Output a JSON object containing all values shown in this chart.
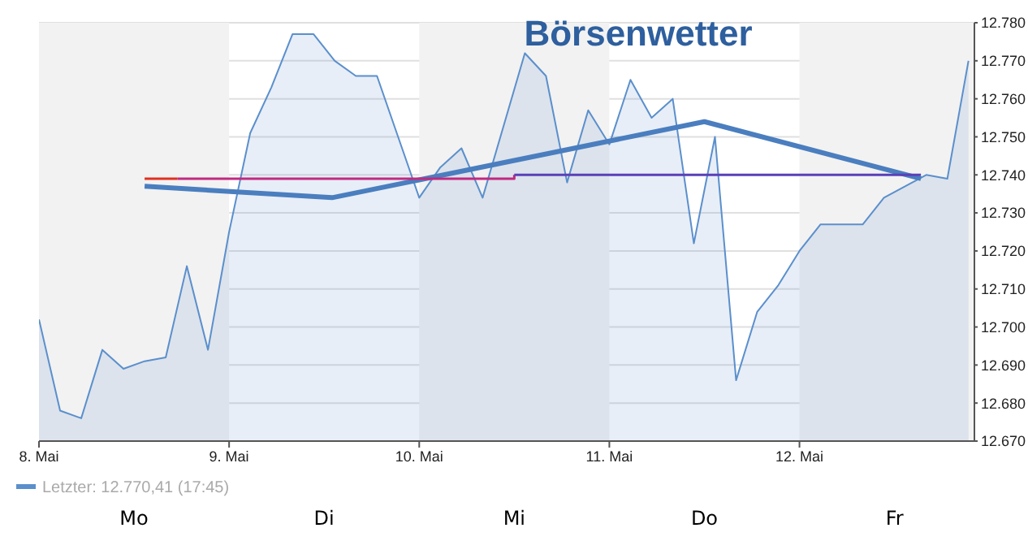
{
  "chart_data": {
    "type": "area",
    "title": "Börsenwetter",
    "annotations": [
      "Mo",
      "Di",
      "Mi",
      "Do",
      "Fr"
    ],
    "xlim": [
      "--05-08T00:00",
      "--05-12T22:05"
    ],
    "xticks": [
      {
        "value": "--05-08T00:00",
        "label": "8. Mai"
      },
      {
        "value": "--05-09T00:00",
        "label": "9. Mai"
      },
      {
        "value": "--05-10T00:00",
        "label": "10. Mai"
      },
      {
        "value": "--05-11T00:00",
        "label": "11. Mai"
      },
      {
        "value": "--05-12T00:00",
        "label": "12. Mai"
      }
    ],
    "ylim": [
      12670,
      12780
    ],
    "yticks": [
      {
        "value": 12670,
        "label": "12.670"
      },
      {
        "value": 12680,
        "label": "12.680"
      },
      {
        "value": 12690,
        "label": "12.690"
      },
      {
        "value": 12700,
        "label": "12.700"
      },
      {
        "value": 12710,
        "label": "12.710"
      },
      {
        "value": 12720,
        "label": "12.720"
      },
      {
        "value": 12730,
        "label": "12.730"
      },
      {
        "value": 12740,
        "label": "12.740"
      },
      {
        "value": 12750,
        "label": "12.750"
      },
      {
        "value": 12760,
        "label": "12.760"
      },
      {
        "value": 12770,
        "label": "12.770"
      },
      {
        "value": 12780,
        "label": "12.780"
      }
    ],
    "grid": "y",
    "legend": "bottom left",
    "bands": [
      {
        "axis": "x",
        "from": "--05-08T00:00",
        "to": "--05-09T00:00",
        "color": "#f2f2f2"
      },
      {
        "axis": "x",
        "from": "--05-10T00:00",
        "to": "--05-11T00:00",
        "color": "#f2f2f2"
      },
      {
        "axis": "x",
        "from": "--05-12T00:00",
        "to": "--05-12T22:05",
        "color": "#f2f2f2"
      }
    ],
    "series": [
      {
        "name": "Letzter: 12.770,41 (17:45)",
        "color": "#5b8fcc",
        "x": [
          "--05-08T00:00",
          "--05-08T02:40",
          "--05-08T05:20",
          "--05-08T08:00",
          "--05-08T10:40",
          "--05-08T13:20",
          "--05-08T16:00",
          "--05-08T18:40",
          "--05-08T21:20",
          "--05-09T00:00",
          "--05-09T02:40",
          "--05-09T05:20",
          "--05-09T08:00",
          "--05-09T10:40",
          "--05-09T13:20",
          "--05-09T16:00",
          "--05-09T18:40",
          "--05-09T21:20",
          "--05-10T00:00",
          "--05-10T02:40",
          "--05-10T05:20",
          "--05-10T08:00",
          "--05-10T10:40",
          "--05-10T13:20",
          "--05-10T16:00",
          "--05-10T18:40",
          "--05-10T21:20",
          "--05-11T00:00",
          "--05-11T02:40",
          "--05-11T05:20",
          "--05-11T08:00",
          "--05-11T10:40",
          "--05-11T13:20",
          "--05-11T16:00",
          "--05-11T18:40",
          "--05-11T21:20",
          "--05-12T00:00",
          "--05-12T02:40",
          "--05-12T05:20",
          "--05-12T08:00",
          "--05-12T10:40",
          "--05-12T13:20",
          "--05-12T16:00",
          "--05-12T18:40",
          "--05-12T21:20"
        ],
        "values": [
          12702,
          12678,
          12676,
          12694,
          12689,
          12691,
          12692,
          12716,
          12694,
          12725,
          12751,
          12763,
          12777,
          12777,
          12770,
          12766,
          12766,
          12750,
          12734,
          12742,
          12747,
          12734,
          12753,
          12772,
          12766,
          12738,
          12757,
          12748,
          12765,
          12755,
          12760,
          12722,
          12750,
          12686,
          12704,
          12711,
          12720,
          12727,
          12727,
          12727,
          12734,
          12737,
          12740,
          12739,
          12770
        ]
      },
      {
        "type": "line",
        "color": "#4a7ebf",
        "x": [
          "--05-08T13:20",
          "--05-09T13:00",
          "--05-11T12:00",
          "--05-12T15:20"
        ],
        "values": [
          12737,
          12734,
          12754,
          12739
        ]
      },
      {
        "type": "step",
        "color": "#e03020",
        "x": [
          "--05-08T13:20",
          "--05-08T17:30"
        ],
        "values": [
          12739,
          12739
        ]
      },
      {
        "type": "step",
        "color": "#c02a80",
        "x": [
          "--05-08T17:30",
          "--05-10T12:00"
        ],
        "values": [
          12739,
          12740
        ]
      },
      {
        "type": "step",
        "color": "#5a40b8",
        "x": [
          "--05-10T12:00",
          "--05-12T15:20"
        ],
        "values": [
          12740,
          12740
        ]
      }
    ]
  }
}
